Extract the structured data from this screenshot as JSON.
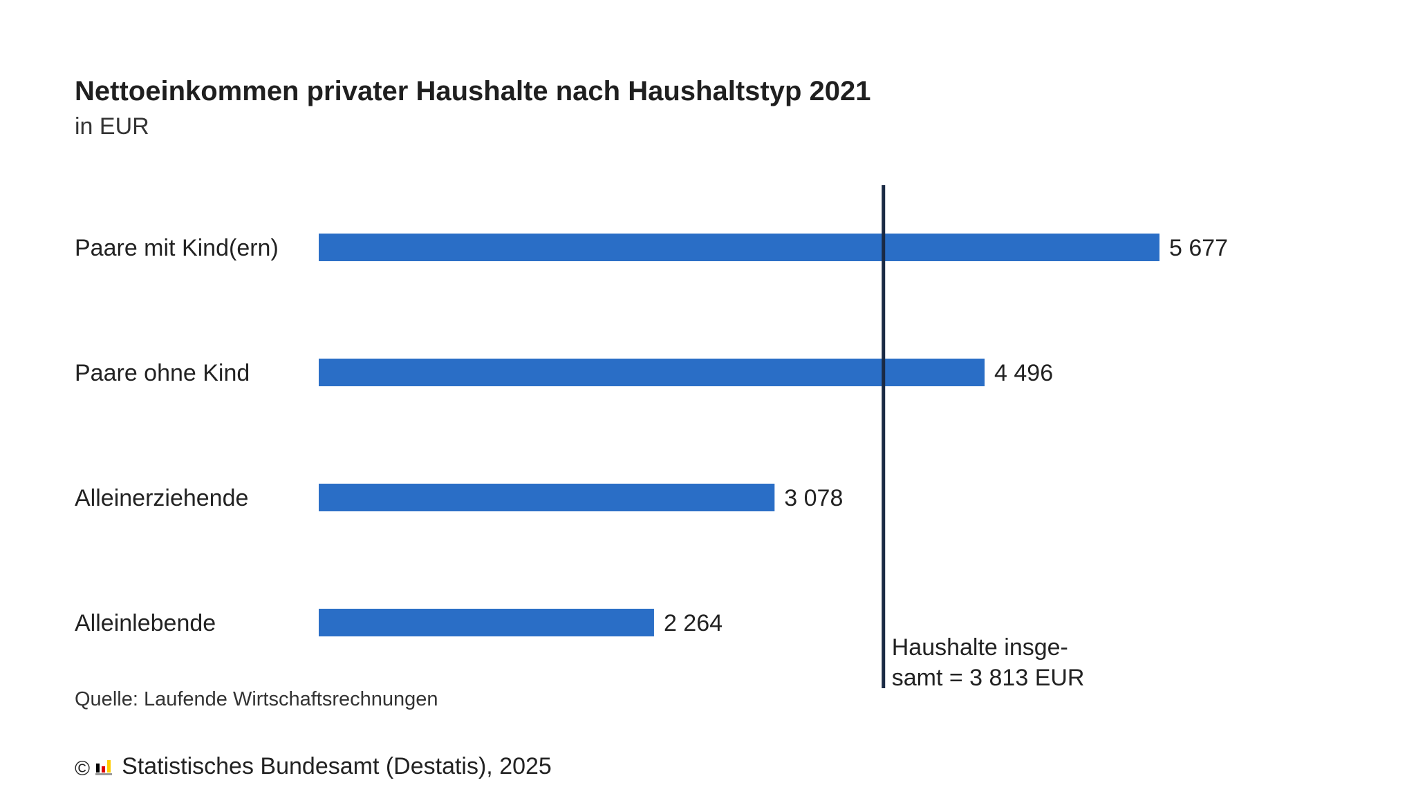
{
  "header": {
    "title": "Nettoeinkommen privater Haushalte nach Haushaltstyp 2021",
    "subtitle": "in EUR"
  },
  "chart_data": {
    "type": "bar",
    "orientation": "horizontal",
    "title": "Nettoeinkommen privater Haushalte nach Haushaltstyp 2021",
    "subtitle": "in EUR",
    "categories": [
      "Paare mit Kind(ern)",
      "Paare ohne Kind",
      "Alleinerziehende",
      "Alleinlebende"
    ],
    "values": [
      5677,
      4496,
      3078,
      2264
    ],
    "value_labels": [
      "5 677",
      "4 496",
      "3 078",
      "2 264"
    ],
    "bar_color": "#2a6ec6",
    "reference_line": {
      "value": 3813,
      "label_lines": [
        "Haushalte insge-",
        "samt = 3 813 EUR"
      ],
      "color": "#1a2a44"
    },
    "xlim": [
      0,
      5677
    ],
    "grid": false,
    "legend": "none"
  },
  "footer": {
    "source": "Quelle: Laufende Wirtschaftsrechnungen",
    "copyright_symbol": "©",
    "copyright_text": "Statistisches Bundesamt (Destatis), 2025",
    "logo_icon": "destatis-logo-icon",
    "logo_colors": [
      "#000000",
      "#dd0000",
      "#ffcc00"
    ]
  }
}
